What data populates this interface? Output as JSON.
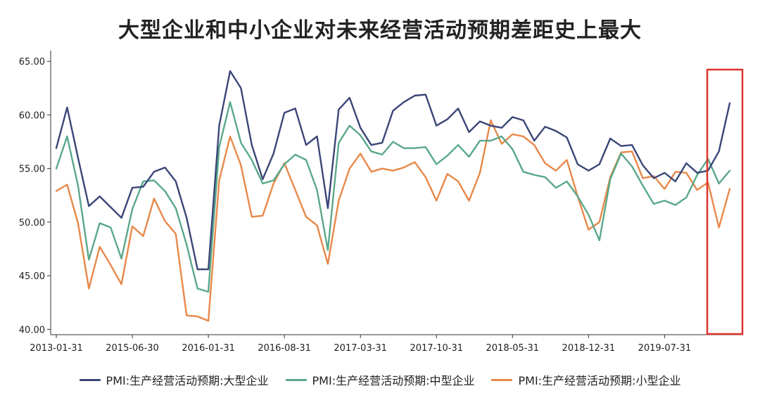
{
  "chart_data": {
    "type": "line",
    "title": "大型企业和中小企业对未来经营活动预期差距史上最大",
    "xlabel": "",
    "ylabel": "",
    "ylim": [
      39.5,
      66.0
    ],
    "yticks": [
      "40.00",
      "45.00",
      "50.00",
      "55.00",
      "60.00",
      "65.00"
    ],
    "xticks": [
      "2013-01-31",
      "2015-06-30",
      "2016-01-31",
      "2016-08-31",
      "2017-03-31",
      "2017-10-31",
      "2018-05-31",
      "2018-12-31",
      "2019-07-31"
    ],
    "grid": false,
    "legend": "bottom",
    "series": [
      {
        "name": "PMI:生产经营活动预期:大型企业",
        "color": "#3a4677",
        "values": [
          56.9,
          60.7,
          56.0,
          51.5,
          52.4,
          51.4,
          50.4,
          53.2,
          53.3,
          54.7,
          55.1,
          53.8,
          50.4,
          45.6,
          45.6,
          59.0,
          64.1,
          62.5,
          57.2,
          54.0,
          56.4,
          60.2,
          60.6,
          57.2,
          58.0,
          51.3,
          60.5,
          61.6,
          58.8,
          57.2,
          57.4,
          60.4,
          61.2,
          61.8,
          61.9,
          59.0,
          59.6,
          60.6,
          58.4,
          59.4,
          59.0,
          58.8,
          59.8,
          59.5,
          57.6,
          58.9,
          58.5,
          57.9,
          55.4,
          54.8,
          55.4,
          57.8,
          57.1,
          57.2,
          55.3,
          54.1,
          54.6,
          53.8,
          55.5,
          54.6,
          54.8,
          56.6,
          61.1
        ]
      },
      {
        "name": "PMI:生产经营活动预期:中型企业",
        "color": "#5aa88a",
        "values": [
          55.0,
          58.0,
          53.4,
          46.5,
          49.9,
          49.5,
          46.6,
          51.2,
          53.8,
          53.9,
          52.9,
          51.3,
          47.9,
          43.8,
          43.5,
          57.0,
          61.2,
          57.4,
          55.8,
          53.6,
          53.9,
          55.4,
          56.3,
          55.8,
          53.0,
          47.4,
          57.4,
          59.0,
          58.1,
          56.6,
          56.3,
          57.5,
          56.9,
          56.9,
          57.0,
          55.4,
          56.2,
          57.2,
          56.1,
          57.6,
          57.6,
          58.0,
          56.8,
          54.7,
          54.4,
          54.2,
          53.2,
          53.8,
          52.4,
          50.7,
          48.3,
          54.0,
          56.4,
          55.2,
          53.4,
          51.7,
          52.0,
          51.6,
          52.3,
          54.4,
          55.9,
          53.6,
          54.8
        ]
      },
      {
        "name": "PMI:生产经营活动预期:小型企业",
        "color": "#e8884a",
        "values": [
          52.9,
          53.5,
          49.9,
          43.8,
          47.7,
          46.0,
          44.2,
          49.6,
          48.7,
          52.2,
          50.1,
          48.9,
          41.3,
          41.2,
          40.8,
          53.9,
          58.0,
          55.3,
          50.5,
          50.6,
          53.6,
          55.5,
          53.0,
          50.5,
          49.7,
          46.1,
          52.0,
          55.0,
          56.4,
          54.7,
          55.0,
          54.8,
          55.1,
          55.6,
          54.2,
          52.0,
          54.5,
          53.8,
          52.0,
          54.6,
          59.5,
          57.3,
          58.2,
          58.0,
          57.2,
          55.5,
          54.8,
          55.8,
          52.4,
          49.3,
          50.0,
          54.2,
          56.5,
          56.6,
          54.1,
          54.3,
          53.1,
          54.7,
          54.6,
          53.0,
          53.7,
          49.5,
          53.1
        ]
      }
    ],
    "highlight_color": "#e0332b"
  }
}
